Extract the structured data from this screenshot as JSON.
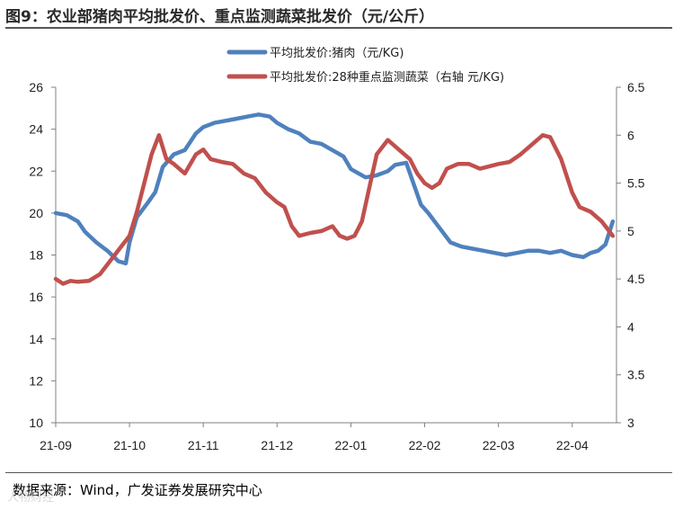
{
  "title": "图9：农业部猪肉平均批发价、重点监测蔬菜批发价（元/公斤）",
  "source": "数据来源：Wind，广发证券发展研究中心",
  "watermark": "人物财经",
  "colors": {
    "pork": "#4f81bd",
    "veg": "#c0504d",
    "axis": "#808080"
  },
  "chart_data": {
    "type": "line",
    "title": "图9：农业部猪肉平均批发价、重点监测蔬菜批发价（元/公斤）",
    "x_categories": [
      "21-09",
      "21-10",
      "21-11",
      "21-12",
      "22-01",
      "22-02",
      "22-03",
      "22-04"
    ],
    "y_left": {
      "min": 10,
      "max": 26,
      "step": 2,
      "ticks": [
        "10",
        "12",
        "14",
        "16",
        "18",
        "20",
        "22",
        "24",
        "26"
      ]
    },
    "y_right": {
      "min": 3,
      "max": 6.5,
      "step": 0.5,
      "ticks": [
        "3",
        "3.5",
        "4",
        "4.5",
        "5",
        "5.5",
        "6",
        "6.5"
      ]
    },
    "legend_position": "top-center",
    "grid": false,
    "series": [
      {
        "name": "平均批发价:猪肉（元/KG)",
        "axis": "left",
        "color": "#4f81bd",
        "points": [
          [
            0,
            20.0
          ],
          [
            0.15,
            19.9
          ],
          [
            0.3,
            19.6
          ],
          [
            0.4,
            19.1
          ],
          [
            0.55,
            18.6
          ],
          [
            0.7,
            18.2
          ],
          [
            0.85,
            17.7
          ],
          [
            0.95,
            17.6
          ],
          [
            1.0,
            18.6
          ],
          [
            1.1,
            19.8
          ],
          [
            1.25,
            20.5
          ],
          [
            1.35,
            21.0
          ],
          [
            1.45,
            22.2
          ],
          [
            1.6,
            22.8
          ],
          [
            1.75,
            23.0
          ],
          [
            1.9,
            23.8
          ],
          [
            2.0,
            24.1
          ],
          [
            2.15,
            24.3
          ],
          [
            2.3,
            24.4
          ],
          [
            2.45,
            24.5
          ],
          [
            2.6,
            24.6
          ],
          [
            2.75,
            24.7
          ],
          [
            2.9,
            24.6
          ],
          [
            3.0,
            24.3
          ],
          [
            3.15,
            24.0
          ],
          [
            3.3,
            23.8
          ],
          [
            3.45,
            23.4
          ],
          [
            3.6,
            23.3
          ],
          [
            3.75,
            23.0
          ],
          [
            3.9,
            22.7
          ],
          [
            4.0,
            22.1
          ],
          [
            4.1,
            21.9
          ],
          [
            4.2,
            21.7
          ],
          [
            4.35,
            21.8
          ],
          [
            4.5,
            22.0
          ],
          [
            4.6,
            22.3
          ],
          [
            4.75,
            22.4
          ],
          [
            4.85,
            21.4
          ],
          [
            4.95,
            20.4
          ],
          [
            5.05,
            20.0
          ],
          [
            5.2,
            19.3
          ],
          [
            5.35,
            18.6
          ],
          [
            5.5,
            18.4
          ],
          [
            5.65,
            18.3
          ],
          [
            5.8,
            18.2
          ],
          [
            5.95,
            18.1
          ],
          [
            6.1,
            18.0
          ],
          [
            6.25,
            18.1
          ],
          [
            6.4,
            18.2
          ],
          [
            6.55,
            18.2
          ],
          [
            6.7,
            18.1
          ],
          [
            6.85,
            18.2
          ],
          [
            7.0,
            18.0
          ],
          [
            7.15,
            17.9
          ],
          [
            7.25,
            18.1
          ],
          [
            7.35,
            18.2
          ],
          [
            7.45,
            18.5
          ],
          [
            7.55,
            19.6
          ]
        ]
      },
      {
        "name": "平均批发价:28种重点监测蔬菜（右轴 元/KG)",
        "axis": "right",
        "color": "#c0504d",
        "points": [
          [
            0,
            4.5
          ],
          [
            0.1,
            4.45
          ],
          [
            0.2,
            4.48
          ],
          [
            0.3,
            4.47
          ],
          [
            0.45,
            4.48
          ],
          [
            0.6,
            4.55
          ],
          [
            0.75,
            4.7
          ],
          [
            0.9,
            4.85
          ],
          [
            1.0,
            4.95
          ],
          [
            1.1,
            5.2
          ],
          [
            1.2,
            5.5
          ],
          [
            1.3,
            5.8
          ],
          [
            1.4,
            6.0
          ],
          [
            1.5,
            5.75
          ],
          [
            1.6,
            5.7
          ],
          [
            1.75,
            5.6
          ],
          [
            1.9,
            5.8
          ],
          [
            2.0,
            5.85
          ],
          [
            2.1,
            5.75
          ],
          [
            2.25,
            5.72
          ],
          [
            2.4,
            5.7
          ],
          [
            2.55,
            5.6
          ],
          [
            2.7,
            5.55
          ],
          [
            2.85,
            5.4
          ],
          [
            3.0,
            5.3
          ],
          [
            3.1,
            5.25
          ],
          [
            3.2,
            5.05
          ],
          [
            3.3,
            4.95
          ],
          [
            3.45,
            4.98
          ],
          [
            3.6,
            5.0
          ],
          [
            3.75,
            5.05
          ],
          [
            3.85,
            4.95
          ],
          [
            3.95,
            4.92
          ],
          [
            4.05,
            4.95
          ],
          [
            4.15,
            5.1
          ],
          [
            4.25,
            5.45
          ],
          [
            4.35,
            5.8
          ],
          [
            4.5,
            5.95
          ],
          [
            4.65,
            5.85
          ],
          [
            4.8,
            5.75
          ],
          [
            4.9,
            5.6
          ],
          [
            5.0,
            5.5
          ],
          [
            5.1,
            5.45
          ],
          [
            5.2,
            5.5
          ],
          [
            5.3,
            5.65
          ],
          [
            5.45,
            5.7
          ],
          [
            5.6,
            5.7
          ],
          [
            5.75,
            5.65
          ],
          [
            5.9,
            5.68
          ],
          [
            6.0,
            5.7
          ],
          [
            6.15,
            5.72
          ],
          [
            6.3,
            5.8
          ],
          [
            6.45,
            5.9
          ],
          [
            6.6,
            6.0
          ],
          [
            6.7,
            5.98
          ],
          [
            6.85,
            5.75
          ],
          [
            7.0,
            5.4
          ],
          [
            7.1,
            5.25
          ],
          [
            7.25,
            5.2
          ],
          [
            7.4,
            5.1
          ],
          [
            7.5,
            5.0
          ],
          [
            7.55,
            4.95
          ]
        ]
      }
    ]
  }
}
